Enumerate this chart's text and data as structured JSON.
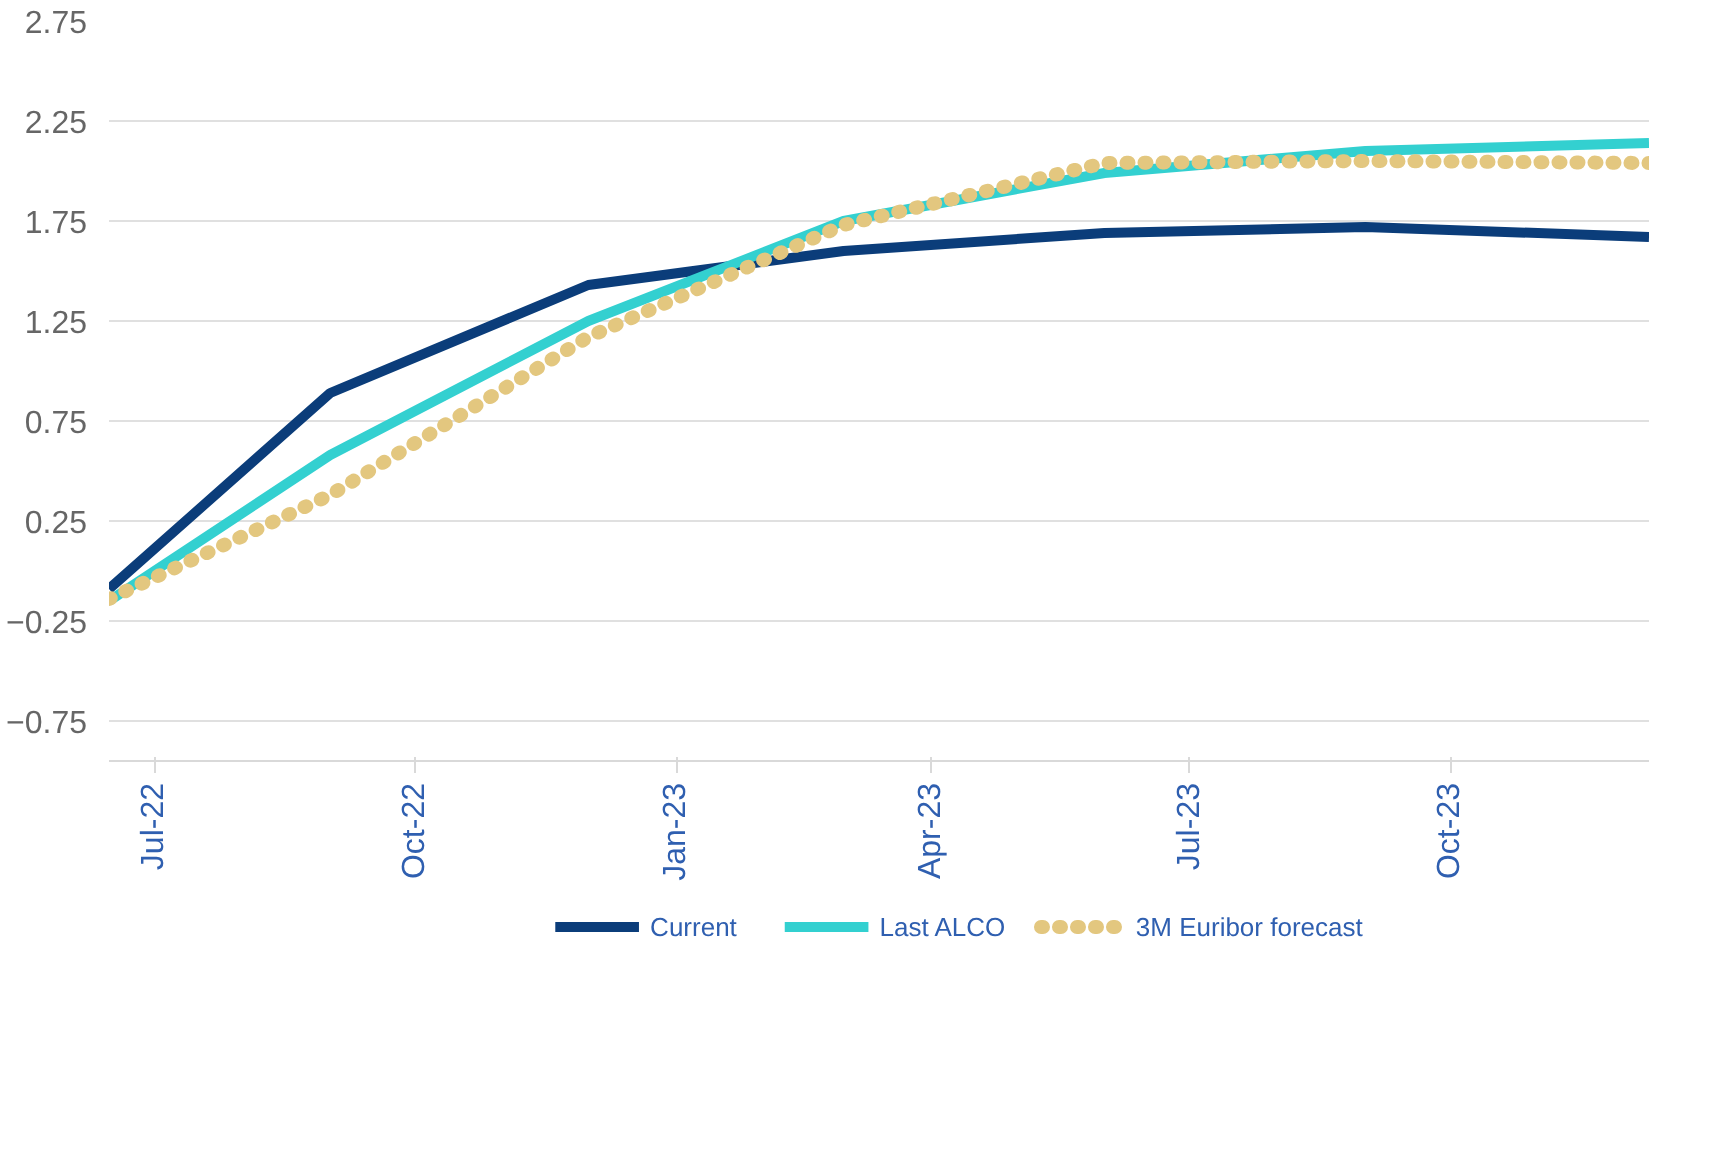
{
  "chart_data": {
    "type": "line",
    "ylim": [
      -0.95,
      2.75
    ],
    "yticks": [
      -0.75,
      -0.25,
      0.25,
      0.75,
      1.25,
      1.75,
      2.25,
      2.75
    ],
    "xlim": [
      "2022-06-15",
      "2023-12-10"
    ],
    "xticks": [
      {
        "value": "2022-07-01",
        "label": "Jul-22"
      },
      {
        "value": "2022-10-01",
        "label": "Oct-22"
      },
      {
        "value": "2023-01-01",
        "label": "Jan-23"
      },
      {
        "value": "2023-04-01",
        "label": "Apr-23"
      },
      {
        "value": "2023-07-01",
        "label": "Jul-23"
      },
      {
        "value": "2023-10-01",
        "label": "Oct-23"
      }
    ],
    "x": [
      "2022-06-15",
      "2022-09-01",
      "2022-12-01",
      "2023-03-01",
      "2023-06-01",
      "2023-09-01",
      "2023-12-10"
    ],
    "grid": "y",
    "legend": "bottom",
    "marker": "none",
    "series": [
      {
        "name": "Current",
        "color": "#0b3d7a",
        "values": [
          -0.09,
          0.89,
          1.43,
          1.6,
          1.69,
          1.72,
          1.67
        ]
      },
      {
        "name": "Last ALCO",
        "color": "#33d0d0",
        "values": [
          -0.15,
          0.58,
          1.25,
          1.75,
          1.99,
          2.1,
          2.14
        ]
      },
      {
        "name": "3M Euribor forecast",
        "color": "#e3c77f",
        "line_style": "dotted",
        "values": [
          -0.14,
          0.38,
          1.17,
          1.73,
          2.04,
          2.05,
          2.04
        ]
      }
    ]
  }
}
